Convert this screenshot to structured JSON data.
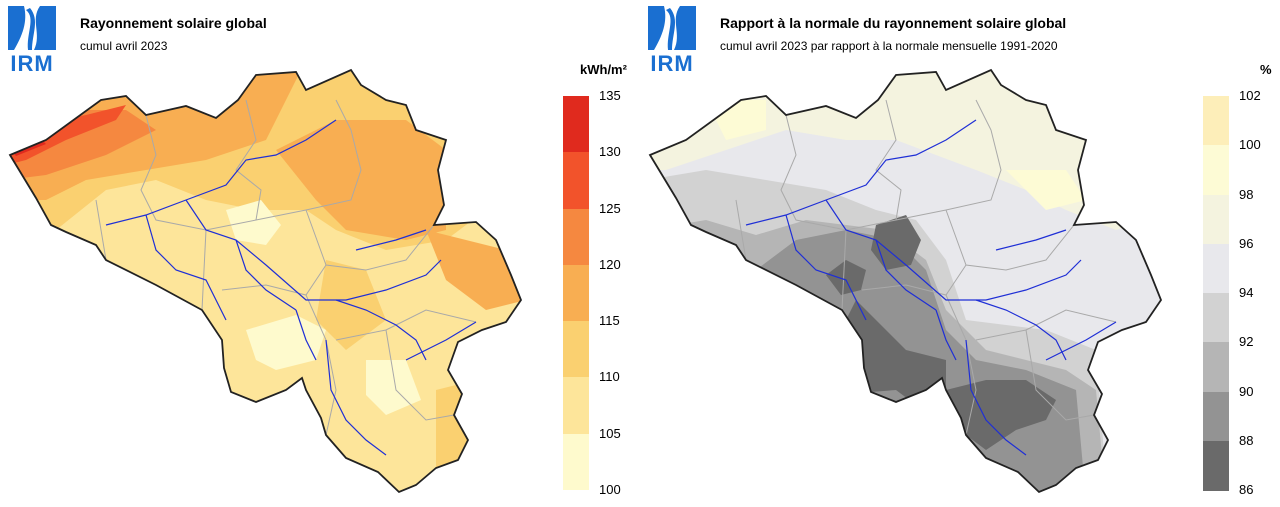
{
  "logo_text": "IRM",
  "left": {
    "title": "Rayonnement solaire global",
    "subtitle": "cumul avril 2023",
    "unit": "kWh/m²",
    "legend": {
      "ticks": [
        "135",
        "130",
        "125",
        "120",
        "115",
        "110",
        "105",
        "100"
      ],
      "colors": [
        "#e02a1e",
        "#f2532b",
        "#f58840",
        "#f8ae52",
        "#fad070",
        "#fde59a",
        "#fefacd"
      ]
    }
  },
  "right": {
    "title": "Rapport à la normale du rayonnement solaire global",
    "subtitle": "cumul avril 2023 par rapport à la normale mensuelle 1991-2020",
    "unit": "%",
    "legend": {
      "ticks": [
        "102",
        "100",
        "98",
        "96",
        "94",
        "92",
        "90",
        "88",
        "86"
      ],
      "colors": [
        "#fdeeb9",
        "#fdfbd5",
        "#f4f3df",
        "#e8e8ec",
        "#d2d2d2",
        "#b5b5b5",
        "#939393",
        "#6a6a6a"
      ]
    }
  }
}
